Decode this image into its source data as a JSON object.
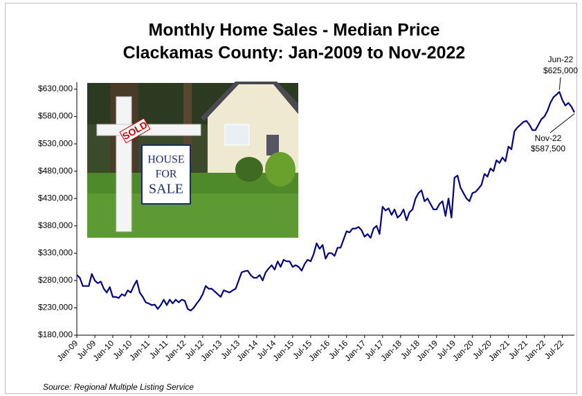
{
  "chart_data": {
    "type": "line",
    "title": [
      "Monthly Home Sales - Median Price",
      "Clackamas County: Jan-2009 to Nov-2022"
    ],
    "source": "Source: Regional Multiple Listing Service",
    "annotations": [
      [
        "Jun-22",
        "$625,000"
      ],
      [
        "Nov-22",
        "$587,500"
      ]
    ],
    "image_labels": [
      "SOLD",
      "HOUSE",
      "FOR",
      "SALE"
    ],
    "categories": [
      "Jan-09",
      null,
      null,
      null,
      null,
      null,
      "Jul-09",
      null,
      null,
      null,
      null,
      null,
      "Jan-10",
      null,
      null,
      null,
      null,
      null,
      "Jul-10",
      null,
      null,
      null,
      null,
      null,
      "Jan-11",
      null,
      null,
      null,
      null,
      null,
      "Jul-11",
      null,
      null,
      null,
      null,
      null,
      "Jan-12",
      null,
      null,
      null,
      null,
      null,
      "Jul-12",
      null,
      null,
      null,
      null,
      null,
      "Jan-13",
      null,
      null,
      null,
      null,
      null,
      "Jul-13",
      null,
      null,
      null,
      null,
      null,
      "Jan-14",
      null,
      null,
      null,
      null,
      null,
      "Jul-14",
      null,
      null,
      null,
      null,
      null,
      "Jan-15",
      null,
      null,
      null,
      null,
      null,
      "Jul-15",
      null,
      null,
      null,
      null,
      null,
      "Jan-16",
      null,
      null,
      null,
      null,
      null,
      "Jul-16",
      null,
      null,
      null,
      null,
      null,
      "Jan-17",
      null,
      null,
      null,
      null,
      null,
      "Jul-17",
      null,
      null,
      null,
      null,
      null,
      "Jan-18",
      null,
      null,
      null,
      null,
      null,
      "Jul-18",
      null,
      null,
      null,
      null,
      null,
      "Jan-19",
      null,
      null,
      null,
      null,
      null,
      "Jul-19",
      null,
      null,
      null,
      null,
      null,
      "Jan-20",
      null,
      null,
      null,
      null,
      null,
      "Jul-20",
      null,
      null,
      null,
      null,
      null,
      "Jan-21",
      null,
      null,
      null,
      null,
      null,
      "Jul-21",
      null,
      null,
      null,
      null,
      null,
      "Jan-22",
      null,
      null,
      null,
      null,
      null,
      "Jul-22",
      null,
      null,
      null,
      null
    ],
    "series": [
      {
        "color": "#000080",
        "values": [
          290000,
          285000,
          270000,
          270000,
          270000,
          292000,
          280000,
          275000,
          278000,
          265000,
          258000,
          268000,
          250000,
          250000,
          248000,
          255000,
          252000,
          262000,
          258000,
          270000,
          280000,
          258000,
          250000,
          240000,
          238000,
          235000,
          236000,
          228000,
          235000,
          245000,
          235000,
          245000,
          238000,
          245000,
          240000,
          245000,
          243000,
          228000,
          225000,
          230000,
          238000,
          245000,
          255000,
          270000,
          265000,
          265000,
          260000,
          255000,
          250000,
          262000,
          260000,
          258000,
          262000,
          265000,
          280000,
          295000,
          297000,
          298000,
          290000,
          285000,
          285000,
          290000,
          280000,
          295000,
          302000,
          308000,
          300000,
          315000,
          305000,
          318000,
          315000,
          315000,
          305000,
          308000,
          305000,
          298000,
          310000,
          318000,
          315000,
          328000,
          348000,
          338000,
          345000,
          320000,
          330000,
          330000,
          325000,
          340000,
          340000,
          355000,
          370000,
          368000,
          375000,
          375000,
          378000,
          372000,
          360000,
          365000,
          358000,
          375000,
          380000,
          365000,
          415000,
          408000,
          412000,
          400000,
          410000,
          395000,
          400000,
          410000,
          390000,
          405000,
          410000,
          430000,
          440000,
          445000,
          425000,
          430000,
          420000,
          410000,
          410000,
          420000,
          425000,
          398000,
          430000,
          395000,
          468000,
          472000,
          450000,
          440000,
          430000,
          425000,
          440000,
          442000,
          448000,
          455000,
          475000,
          470000,
          485000,
          480000,
          500000,
          495000,
          505000,
          498000,
          525000,
          520000,
          553000,
          560000,
          565000,
          570000,
          572000,
          565000,
          555000,
          555000,
          565000,
          575000,
          580000,
          590000,
          605000,
          615000,
          620000,
          625000,
          610000,
          600000,
          605000,
          598000,
          587500
        ]
      }
    ],
    "ylim": [
      180000,
      630000
    ],
    "yticks": [
      {
        "value": 180000,
        "label": "$180,000"
      },
      {
        "value": 230000,
        "label": "$230,000"
      },
      {
        "value": 280000,
        "label": "$280,000"
      },
      {
        "value": 330000,
        "label": "$330,000"
      },
      {
        "value": 380000,
        "label": "$380,000"
      },
      {
        "value": 430000,
        "label": "$430,000"
      },
      {
        "value": 480000,
        "label": "$480,000"
      },
      {
        "value": 530000,
        "label": "$530,000"
      },
      {
        "value": 580000,
        "label": "$580,000"
      },
      {
        "value": 630000,
        "label": "$630,000"
      }
    ],
    "grid": false
  }
}
